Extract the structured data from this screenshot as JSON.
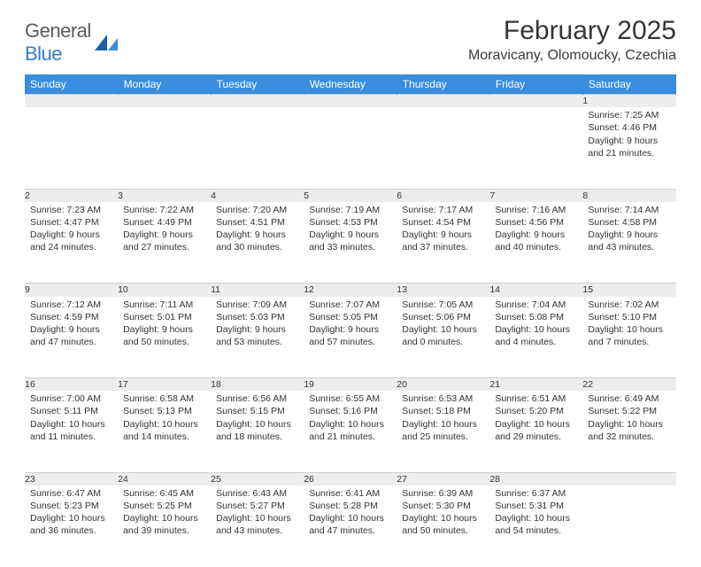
{
  "logo": {
    "word1": "General",
    "word2": "Blue"
  },
  "title": "February 2025",
  "location": "Moravicany, Olomoucky, Czechia",
  "calendar": {
    "type": "table",
    "header_bg": "#3a8dde",
    "header_fg": "#ffffff",
    "daynum_bg": "#ededed",
    "columns": [
      "Sunday",
      "Monday",
      "Tuesday",
      "Wednesday",
      "Thursday",
      "Friday",
      "Saturday"
    ],
    "weeks": [
      [
        null,
        null,
        null,
        null,
        null,
        null,
        {
          "n": "1",
          "sunrise": "Sunrise: 7:25 AM",
          "sunset": "Sunset: 4:46 PM",
          "daylight": "Daylight: 9 hours and 21 minutes."
        }
      ],
      [
        {
          "n": "2",
          "sunrise": "Sunrise: 7:23 AM",
          "sunset": "Sunset: 4:47 PM",
          "daylight": "Daylight: 9 hours and 24 minutes."
        },
        {
          "n": "3",
          "sunrise": "Sunrise: 7:22 AM",
          "sunset": "Sunset: 4:49 PM",
          "daylight": "Daylight: 9 hours and 27 minutes."
        },
        {
          "n": "4",
          "sunrise": "Sunrise: 7:20 AM",
          "sunset": "Sunset: 4:51 PM",
          "daylight": "Daylight: 9 hours and 30 minutes."
        },
        {
          "n": "5",
          "sunrise": "Sunrise: 7:19 AM",
          "sunset": "Sunset: 4:53 PM",
          "daylight": "Daylight: 9 hours and 33 minutes."
        },
        {
          "n": "6",
          "sunrise": "Sunrise: 7:17 AM",
          "sunset": "Sunset: 4:54 PM",
          "daylight": "Daylight: 9 hours and 37 minutes."
        },
        {
          "n": "7",
          "sunrise": "Sunrise: 7:16 AM",
          "sunset": "Sunset: 4:56 PM",
          "daylight": "Daylight: 9 hours and 40 minutes."
        },
        {
          "n": "8",
          "sunrise": "Sunrise: 7:14 AM",
          "sunset": "Sunset: 4:58 PM",
          "daylight": "Daylight: 9 hours and 43 minutes."
        }
      ],
      [
        {
          "n": "9",
          "sunrise": "Sunrise: 7:12 AM",
          "sunset": "Sunset: 4:59 PM",
          "daylight": "Daylight: 9 hours and 47 minutes."
        },
        {
          "n": "10",
          "sunrise": "Sunrise: 7:11 AM",
          "sunset": "Sunset: 5:01 PM",
          "daylight": "Daylight: 9 hours and 50 minutes."
        },
        {
          "n": "11",
          "sunrise": "Sunrise: 7:09 AM",
          "sunset": "Sunset: 5:03 PM",
          "daylight": "Daylight: 9 hours and 53 minutes."
        },
        {
          "n": "12",
          "sunrise": "Sunrise: 7:07 AM",
          "sunset": "Sunset: 5:05 PM",
          "daylight": "Daylight: 9 hours and 57 minutes."
        },
        {
          "n": "13",
          "sunrise": "Sunrise: 7:05 AM",
          "sunset": "Sunset: 5:06 PM",
          "daylight": "Daylight: 10 hours and 0 minutes."
        },
        {
          "n": "14",
          "sunrise": "Sunrise: 7:04 AM",
          "sunset": "Sunset: 5:08 PM",
          "daylight": "Daylight: 10 hours and 4 minutes."
        },
        {
          "n": "15",
          "sunrise": "Sunrise: 7:02 AM",
          "sunset": "Sunset: 5:10 PM",
          "daylight": "Daylight: 10 hours and 7 minutes."
        }
      ],
      [
        {
          "n": "16",
          "sunrise": "Sunrise: 7:00 AM",
          "sunset": "Sunset: 5:11 PM",
          "daylight": "Daylight: 10 hours and 11 minutes."
        },
        {
          "n": "17",
          "sunrise": "Sunrise: 6:58 AM",
          "sunset": "Sunset: 5:13 PM",
          "daylight": "Daylight: 10 hours and 14 minutes."
        },
        {
          "n": "18",
          "sunrise": "Sunrise: 6:56 AM",
          "sunset": "Sunset: 5:15 PM",
          "daylight": "Daylight: 10 hours and 18 minutes."
        },
        {
          "n": "19",
          "sunrise": "Sunrise: 6:55 AM",
          "sunset": "Sunset: 5:16 PM",
          "daylight": "Daylight: 10 hours and 21 minutes."
        },
        {
          "n": "20",
          "sunrise": "Sunrise: 6:53 AM",
          "sunset": "Sunset: 5:18 PM",
          "daylight": "Daylight: 10 hours and 25 minutes."
        },
        {
          "n": "21",
          "sunrise": "Sunrise: 6:51 AM",
          "sunset": "Sunset: 5:20 PM",
          "daylight": "Daylight: 10 hours and 29 minutes."
        },
        {
          "n": "22",
          "sunrise": "Sunrise: 6:49 AM",
          "sunset": "Sunset: 5:22 PM",
          "daylight": "Daylight: 10 hours and 32 minutes."
        }
      ],
      [
        {
          "n": "23",
          "sunrise": "Sunrise: 6:47 AM",
          "sunset": "Sunset: 5:23 PM",
          "daylight": "Daylight: 10 hours and 36 minutes."
        },
        {
          "n": "24",
          "sunrise": "Sunrise: 6:45 AM",
          "sunset": "Sunset: 5:25 PM",
          "daylight": "Daylight: 10 hours and 39 minutes."
        },
        {
          "n": "25",
          "sunrise": "Sunrise: 6:43 AM",
          "sunset": "Sunset: 5:27 PM",
          "daylight": "Daylight: 10 hours and 43 minutes."
        },
        {
          "n": "26",
          "sunrise": "Sunrise: 6:41 AM",
          "sunset": "Sunset: 5:28 PM",
          "daylight": "Daylight: 10 hours and 47 minutes."
        },
        {
          "n": "27",
          "sunrise": "Sunrise: 6:39 AM",
          "sunset": "Sunset: 5:30 PM",
          "daylight": "Daylight: 10 hours and 50 minutes."
        },
        {
          "n": "28",
          "sunrise": "Sunrise: 6:37 AM",
          "sunset": "Sunset: 5:31 PM",
          "daylight": "Daylight: 10 hours and 54 minutes."
        },
        null
      ]
    ]
  }
}
